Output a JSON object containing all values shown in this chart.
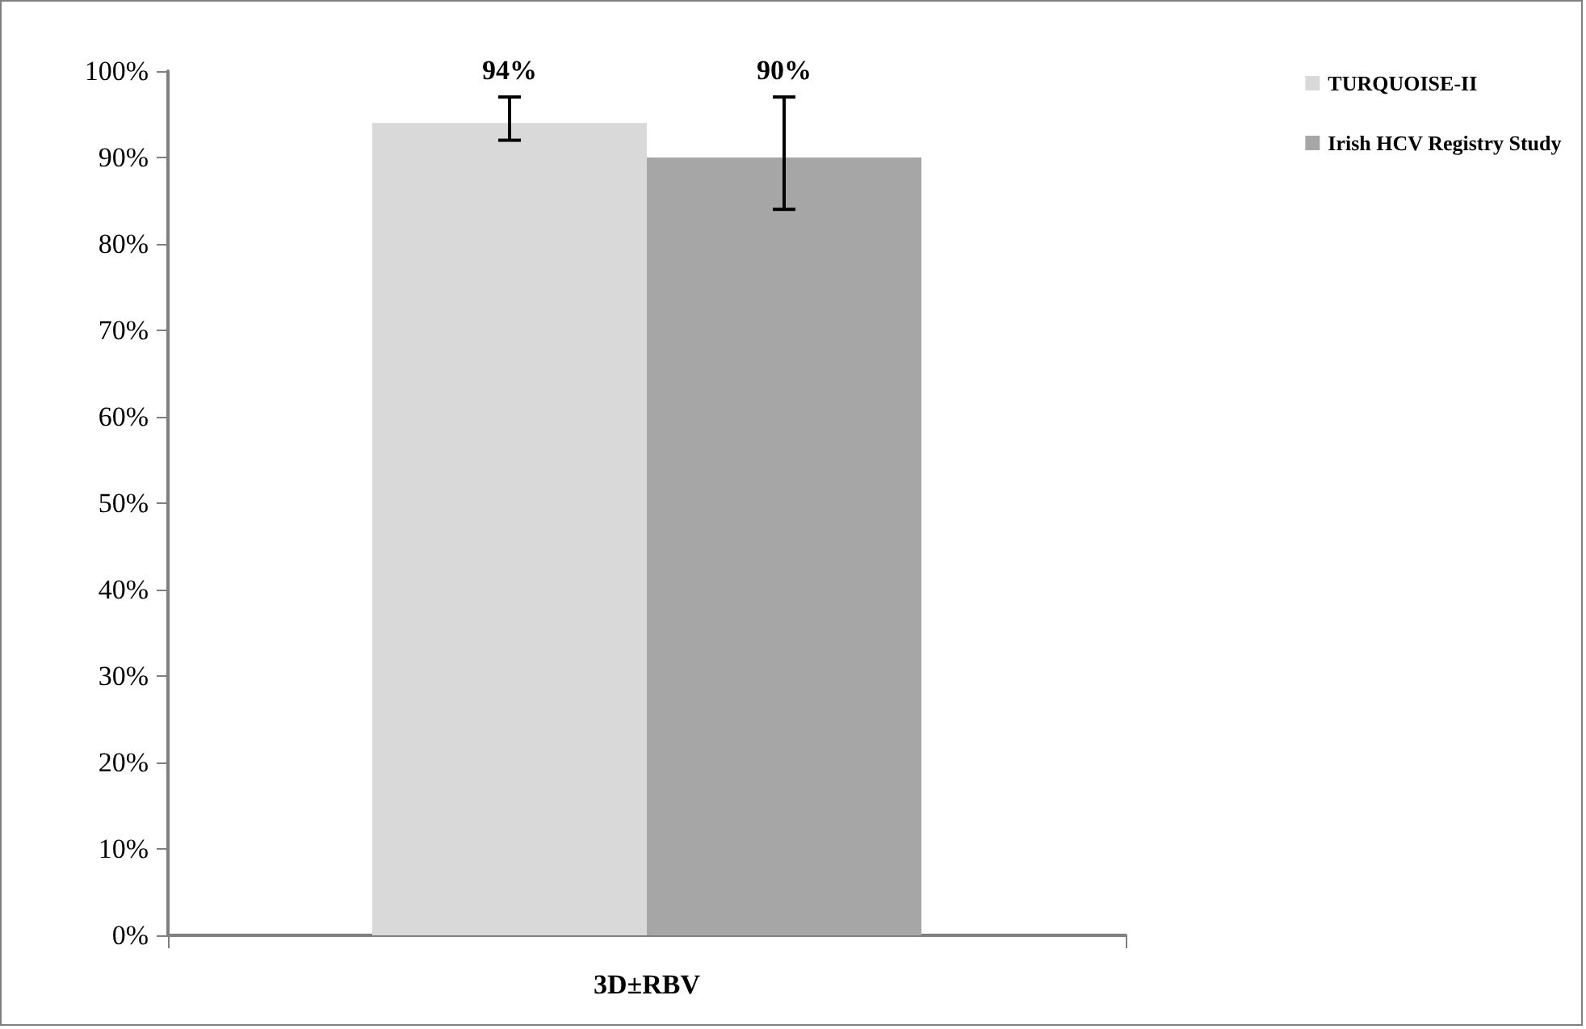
{
  "chart_data": {
    "type": "bar",
    "categories": [
      "3D±RBV"
    ],
    "series": [
      {
        "name": "TURQUOISE-II",
        "color": "#d9d9d9",
        "values": [
          94
        ],
        "errors": [
          [
            92,
            97
          ]
        ],
        "value_labels": [
          "94%"
        ]
      },
      {
        "name": "Irish HCV Registry Study",
        "color": "#a6a6a6",
        "values": [
          90
        ],
        "errors": [
          [
            84,
            97
          ]
        ],
        "value_labels": [
          "90%"
        ]
      }
    ],
    "ylim": [
      0,
      100
    ],
    "yticks": [
      {
        "value": 0,
        "label": "0%"
      },
      {
        "value": 10,
        "label": "10%"
      },
      {
        "value": 20,
        "label": "20%"
      },
      {
        "value": 30,
        "label": "30%"
      },
      {
        "value": 40,
        "label": "40%"
      },
      {
        "value": 50,
        "label": "50%"
      },
      {
        "value": 60,
        "label": "60%"
      },
      {
        "value": 70,
        "label": "70%"
      },
      {
        "value": 80,
        "label": "80%"
      },
      {
        "value": 90,
        "label": "90%"
      },
      {
        "value": 100,
        "label": "100%"
      }
    ],
    "grid": false,
    "legend": "right"
  }
}
